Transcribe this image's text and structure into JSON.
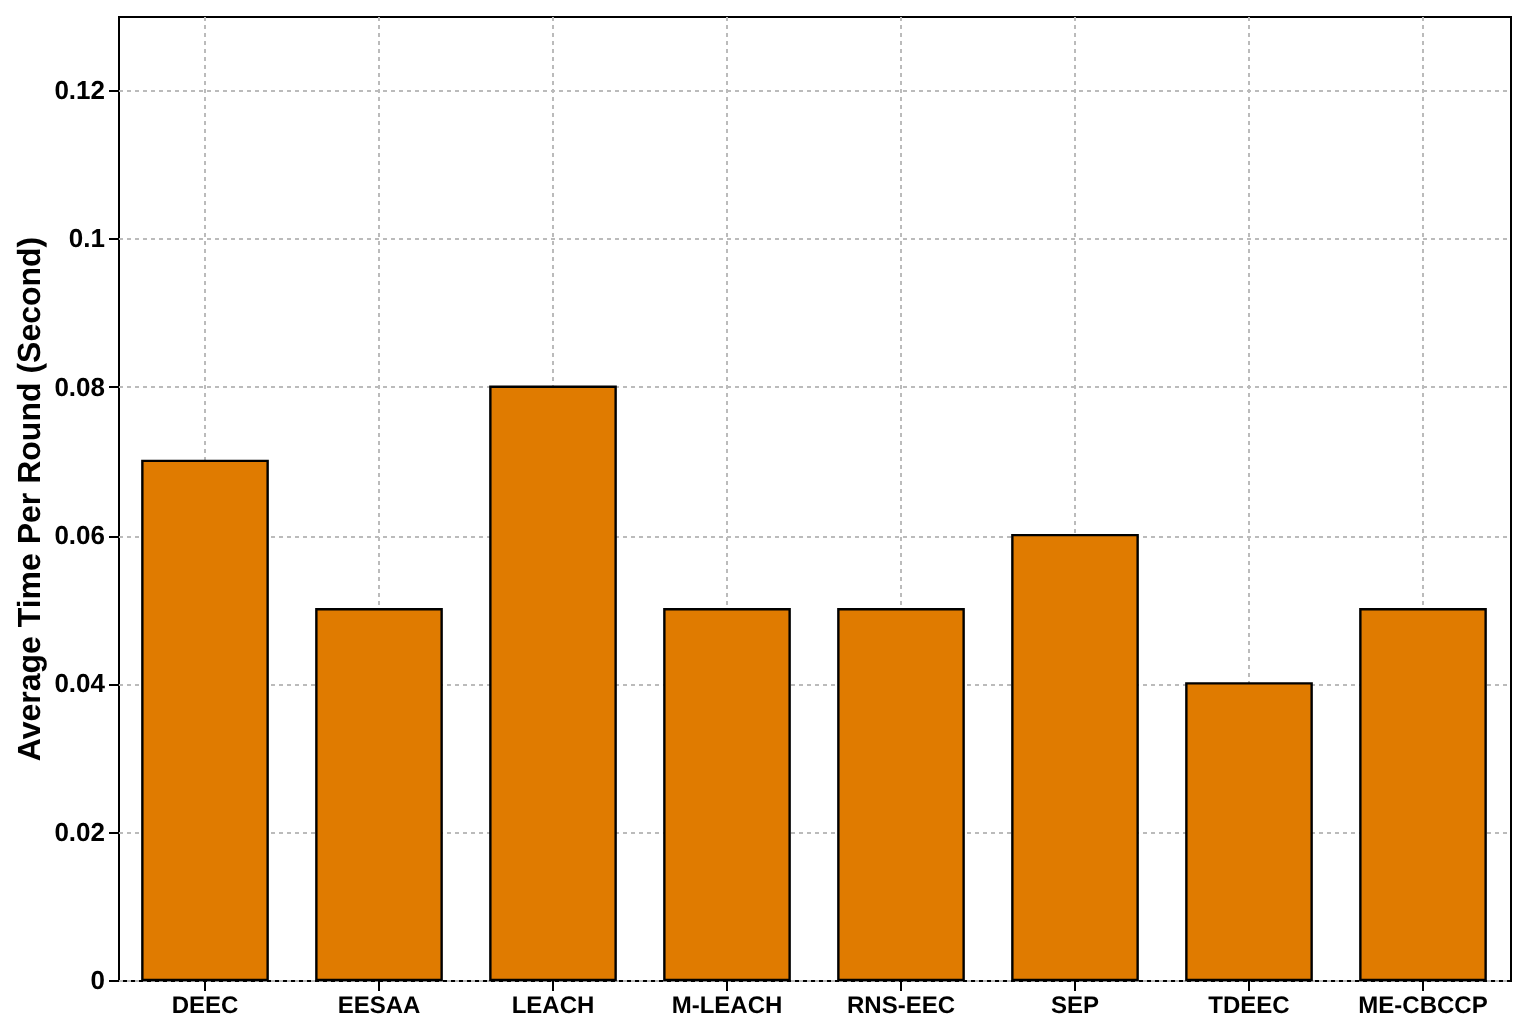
{
  "chart_data": {
    "type": "bar",
    "ylabel": "Average Time Per Round (Second)",
    "categories": [
      "DEEC",
      "EESAA",
      "LEACH",
      "M-LEACH",
      "RNS-EEC",
      "SEP",
      "TDEEC",
      "ME-CBCCP"
    ],
    "values": [
      0.07,
      0.05,
      0.08,
      0.05,
      0.05,
      0.06,
      0.04,
      0.05
    ],
    "color": "#e07b00",
    "ylim": [
      0,
      0.13
    ],
    "yticks": [
      0,
      0.02,
      0.04,
      0.06,
      0.08,
      0.1,
      0.12
    ],
    "grid": true
  }
}
